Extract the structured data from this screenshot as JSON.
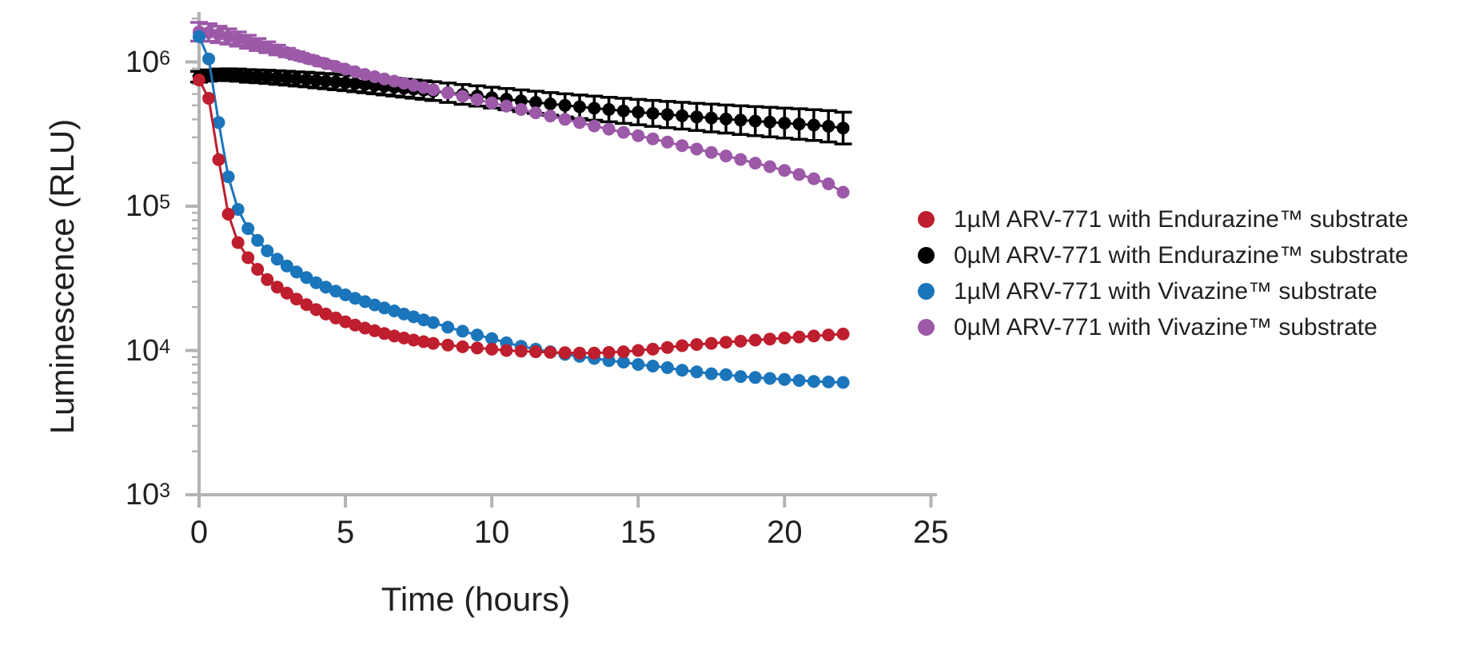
{
  "chart_data": {
    "type": "line",
    "title": "",
    "xlabel": "Time (hours)",
    "ylabel": "Luminescence (RLU)",
    "x_ticks": [
      0,
      5,
      10,
      15,
      20,
      25
    ],
    "xlim": [
      0,
      25.2
    ],
    "y_scale": "log",
    "y_tick_exponents": [
      3,
      4,
      5,
      6
    ],
    "ylim": [
      1000,
      2100000
    ],
    "grid": false,
    "legend_position": "right-of-plot",
    "axis_color": "#b3b3b3",
    "text_color": "#231f20",
    "marker": "circle",
    "draw_order": [
      1,
      3,
      2,
      0
    ],
    "x_hours": [
      0,
      0.33,
      0.67,
      1,
      1.33,
      1.67,
      2,
      2.33,
      2.67,
      3,
      3.33,
      3.67,
      4,
      4.33,
      4.67,
      5,
      5.33,
      5.67,
      6,
      6.33,
      6.67,
      7,
      7.33,
      7.67,
      8,
      8.5,
      9,
      9.5,
      10,
      10.5,
      11,
      11.5,
      12,
      12.5,
      13,
      13.5,
      14,
      14.5,
      15,
      15.5,
      16,
      16.5,
      17,
      17.5,
      18,
      18.5,
      19,
      19.5,
      20,
      20.5,
      21,
      21.5,
      22
    ],
    "series": [
      {
        "name": "1µM ARV-771 with Endurazine™ substrate",
        "color": "#be1e2d",
        "values": [
          750000,
          560000,
          210000,
          88000,
          56000,
          44000,
          36500,
          31000,
          27500,
          25000,
          22700,
          20800,
          19200,
          17900,
          16800,
          15800,
          15000,
          14300,
          13700,
          13100,
          12600,
          12200,
          11800,
          11500,
          11200,
          10900,
          10600,
          10400,
          10200,
          10000,
          9900,
          9800,
          9700,
          9650,
          9600,
          9600,
          9700,
          9800,
          10000,
          10200,
          10500,
          10800,
          11000,
          11200,
          11400,
          11600,
          11800,
          12000,
          12200,
          12400,
          12600,
          12800,
          13000
        ],
        "error_rel": []
      },
      {
        "name": "0µM ARV-771 with Endurazine™ substrate",
        "color": "#000000",
        "values": [
          790000,
          805000,
          815000,
          815000,
          810000,
          800000,
          795000,
          788000,
          780000,
          772000,
          763000,
          755000,
          745000,
          736000,
          727000,
          718000,
          708000,
          698000,
          688000,
          678000,
          668000,
          658000,
          648000,
          638000,
          628000,
          612000,
          596000,
          581000,
          566000,
          552000,
          538000,
          525000,
          512000,
          500000,
          489000,
          478000,
          468000,
          458000,
          449000,
          440000,
          432000,
          424000,
          416000,
          409000,
          402000,
          395000,
          389000,
          383000,
          377000,
          371000,
          365000,
          358000,
          348000
        ],
        "error_rel": [
          0.09,
          0.093,
          0.096,
          0.099,
          0.102,
          0.105,
          0.108,
          0.111,
          0.114,
          0.117,
          0.12,
          0.123,
          0.126,
          0.129,
          0.132,
          0.135,
          0.138,
          0.141,
          0.144,
          0.147,
          0.15,
          0.153,
          0.156,
          0.159,
          0.162,
          0.167,
          0.171,
          0.176,
          0.18,
          0.185,
          0.189,
          0.194,
          0.198,
          0.203,
          0.207,
          0.212,
          0.216,
          0.221,
          0.225,
          0.23,
          0.234,
          0.239,
          0.243,
          0.248,
          0.252,
          0.257,
          0.261,
          0.266,
          0.27,
          0.275,
          0.279,
          0.284,
          0.288
        ]
      },
      {
        "name": "1µM ARV-771 with Vivazine™ substrate",
        "color": "#1b75bb",
        "values": [
          1500000,
          1050000,
          380000,
          160000,
          95000,
          70000,
          58000,
          49000,
          43000,
          38500,
          35000,
          32000,
          29500,
          27500,
          25800,
          24300,
          23000,
          21800,
          20700,
          19700,
          18800,
          17900,
          17100,
          16300,
          15600,
          14500,
          13600,
          12800,
          12100,
          11300,
          10700,
          10200,
          9800,
          9400,
          9100,
          8800,
          8500,
          8300,
          8000,
          7800,
          7600,
          7300,
          7100,
          6900,
          6800,
          6600,
          6500,
          6400,
          6300,
          6200,
          6100,
          6050,
          6000
        ],
        "error_rel": []
      },
      {
        "name": "0µM ARV-771 with Vivazine™ substrate",
        "color": "#9c59a8",
        "values": [
          1620000,
          1600000,
          1550000,
          1500000,
          1440000,
          1380000,
          1320000,
          1265000,
          1210000,
          1160000,
          1110000,
          1060000,
          1015000,
          972000,
          931000,
          892000,
          855000,
          820000,
          790000,
          762000,
          736000,
          712000,
          688000,
          665000,
          642000,
          610000,
          578000,
          548000,
          520000,
          494000,
          468000,
          444000,
          422000,
          400000,
          380000,
          360000,
          342000,
          325000,
          308000,
          293000,
          278000,
          263000,
          249000,
          236000,
          223000,
          211000,
          199000,
          188000,
          177000,
          166000,
          155000,
          143000,
          125000
        ],
        "error_rel": [
          0.16,
          0.15,
          0.14,
          0.13,
          0.12,
          0.11,
          0.1,
          0.09,
          0.08,
          0.07,
          0.06,
          0.05,
          0.045,
          0.04,
          0.035,
          0.03,
          0.025,
          0.02,
          0.015,
          0.01,
          0.008,
          0.005,
          0.003,
          0.002,
          0.001,
          0,
          0,
          0,
          0,
          0,
          0,
          0,
          0,
          0,
          0,
          0,
          0,
          0,
          0,
          0,
          0,
          0,
          0,
          0,
          0,
          0,
          0,
          0,
          0,
          0,
          0,
          0,
          0
        ]
      }
    ]
  }
}
